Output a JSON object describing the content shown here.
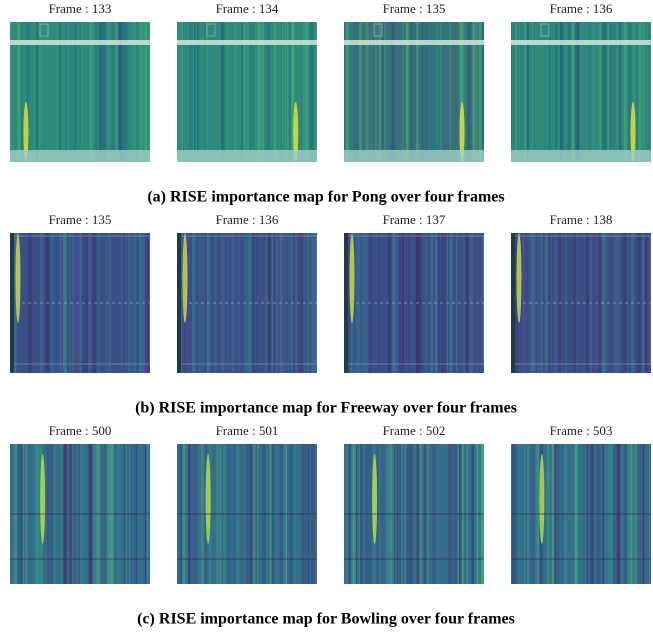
{
  "panels": [
    {
      "caption": "(a) RISE importance map for Pong over four frames",
      "frames": [
        "Frame : 133",
        "Frame : 134",
        "Frame : 135",
        "Frame : 136"
      ]
    },
    {
      "caption": "(b) RISE importance map for Freeway over four frames",
      "frames": [
        "Frame : 135",
        "Frame : 136",
        "Frame : 137",
        "Frame : 138"
      ]
    },
    {
      "caption": "(c) RISE importance map for Bowling over four frames",
      "frames": [
        "Frame : 500",
        "Frame : 501",
        "Frame : 502",
        "Frame : 503"
      ]
    }
  ]
}
